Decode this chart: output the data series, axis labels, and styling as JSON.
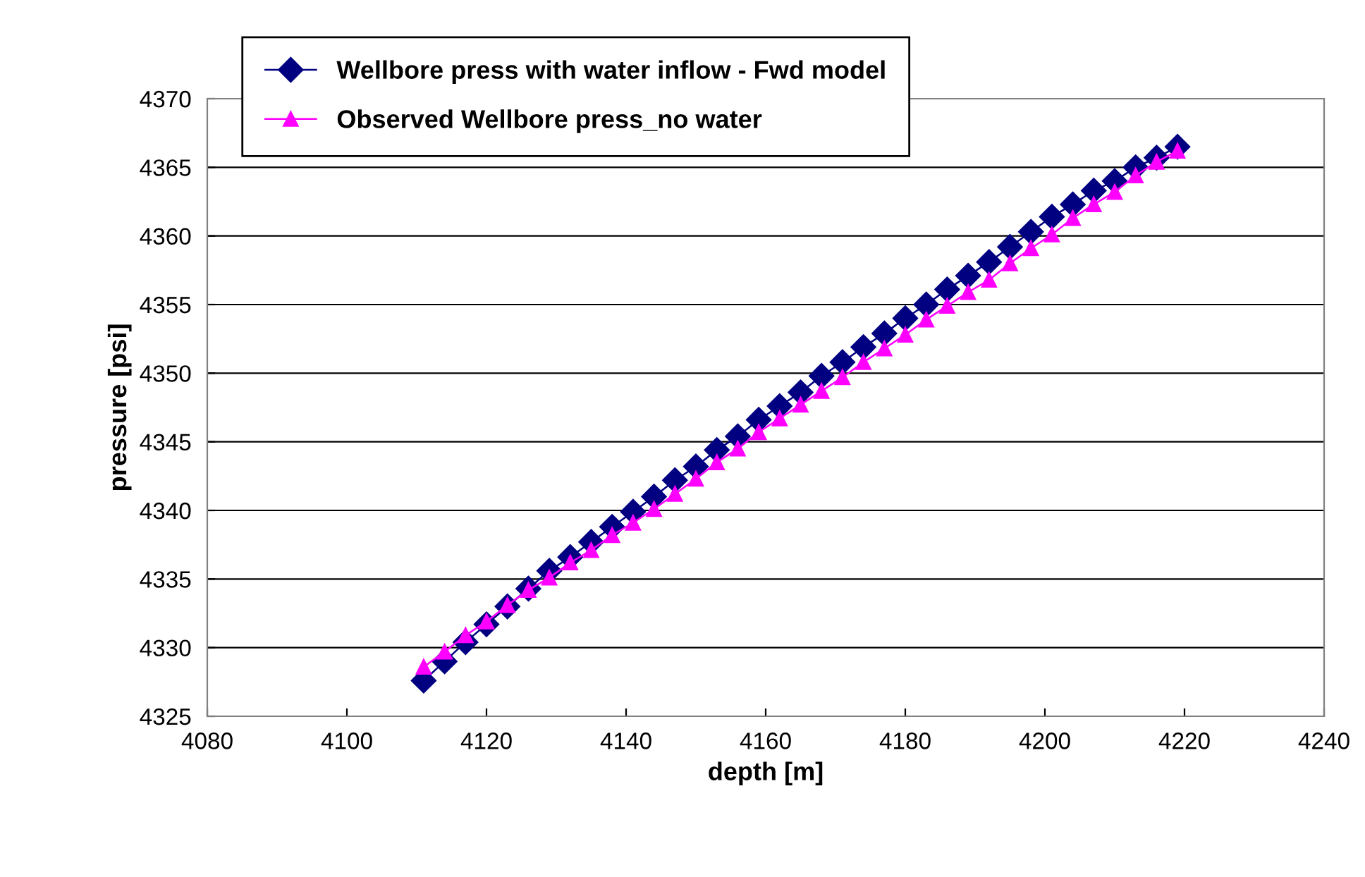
{
  "chart_data": {
    "type": "line",
    "xlabel": "depth [m]",
    "ylabel": "pressure [psi]",
    "xlim": [
      4080,
      4240
    ],
    "xticks": [
      4080,
      4100,
      4120,
      4140,
      4160,
      4180,
      4200,
      4220,
      4240
    ],
    "ylim": [
      4325,
      4370
    ],
    "yticks": [
      4325,
      4330,
      4335,
      4340,
      4345,
      4350,
      4355,
      4360,
      4365,
      4370
    ],
    "grid": "y",
    "legend": "top left",
    "line_style": "solid",
    "x": [
      4111,
      4114,
      4117,
      4120,
      4123,
      4126,
      4129,
      4132,
      4135,
      4138,
      4141,
      4144,
      4147,
      4150,
      4153,
      4156,
      4159,
      4162,
      4165,
      4168,
      4171,
      4174,
      4177,
      4180,
      4183,
      4186,
      4189,
      4192,
      4195,
      4198,
      4201,
      4204,
      4207,
      4210,
      4213,
      4216,
      4219
    ],
    "series": [
      {
        "name": "Wellbore press with water inflow - Fwd model",
        "color": "#000080",
        "marker": "diamond",
        "values": [
          4327.6,
          4329.0,
          4330.4,
          4331.7,
          4333.0,
          4334.3,
          4335.6,
          4336.6,
          4337.7,
          4338.8,
          4339.9,
          4341.0,
          4342.2,
          4343.2,
          4344.4,
          4345.4,
          4346.6,
          4347.6,
          4348.6,
          4349.8,
          4350.8,
          4351.9,
          4352.9,
          4354.0,
          4355.0,
          4356.1,
          4357.1,
          4358.1,
          4359.2,
          4360.3,
          4361.4,
          4362.3,
          4363.3,
          4364.0,
          4365.0,
          4365.7,
          4366.5
        ]
      },
      {
        "name": "Observed Wellbore press_no water",
        "color": "#ff00ff",
        "marker": "triangle",
        "values": [
          4328.6,
          4329.7,
          4330.9,
          4331.9,
          4333.1,
          4334.2,
          4335.1,
          4336.2,
          4337.1,
          4338.2,
          4339.1,
          4340.1,
          4341.2,
          4342.3,
          4343.5,
          4344.5,
          4345.7,
          4346.7,
          4347.7,
          4348.7,
          4349.7,
          4350.8,
          4351.8,
          4352.8,
          4353.9,
          4354.9,
          4355.9,
          4356.8,
          4358.0,
          4359.1,
          4360.1,
          4361.3,
          4362.3,
          4363.2,
          4364.4,
          4365.4,
          4366.2
        ]
      }
    ]
  }
}
